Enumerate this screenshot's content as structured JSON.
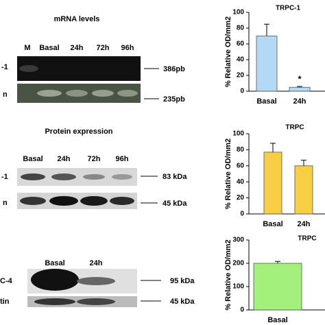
{
  "panels": [
    {
      "title": "mRNA levels",
      "lanes": [
        "M",
        "Basal",
        "24h",
        "72h",
        "96h"
      ],
      "rows": [
        "-1",
        "n"
      ],
      "sizes": [
        "386pb",
        "235pb"
      ]
    },
    {
      "title": "Protein expression",
      "lanes": [
        "Basal",
        "24h",
        "72h",
        "96h"
      ],
      "rows": [
        "-1",
        "n"
      ],
      "sizes": [
        "83 kDa",
        "45 kDa"
      ]
    },
    {
      "lanes": [
        "Basal",
        "24h"
      ],
      "rows": [
        "C-4",
        "tin"
      ],
      "sizes": [
        "95 kDa",
        "45 kDa"
      ]
    }
  ],
  "chart_data": [
    {
      "type": "bar",
      "title": "TRPC-1",
      "ylabel": "% Relative OD/mm2",
      "categories": [
        "Basal",
        "24h"
      ],
      "values": [
        70,
        5
      ],
      "errors": [
        15,
        1
      ],
      "significance": [
        null,
        "*"
      ],
      "color": "#b4d9f4",
      "ylim": [
        0,
        100
      ],
      "yticks": [
        0,
        20,
        40,
        60,
        80,
        100
      ]
    },
    {
      "type": "bar",
      "title": "TRPC",
      "ylabel": "% Relative OD/mm2",
      "categories": [
        "Basal",
        "24h"
      ],
      "values": [
        77,
        60
      ],
      "errors": [
        11,
        7
      ],
      "color": "#f7cf45",
      "ylim": [
        0,
        100
      ],
      "yticks": [
        0,
        20,
        40,
        60,
        80,
        100
      ]
    },
    {
      "type": "bar",
      "title": "TRPC",
      "ylabel": "% Relative OD/mm2",
      "categories": [
        "Basal"
      ],
      "values": [
        200
      ],
      "errors": [
        8
      ],
      "color": "#a3f07c",
      "ylim": [
        0,
        300
      ],
      "yticks": [
        0,
        100,
        200,
        300
      ]
    }
  ]
}
